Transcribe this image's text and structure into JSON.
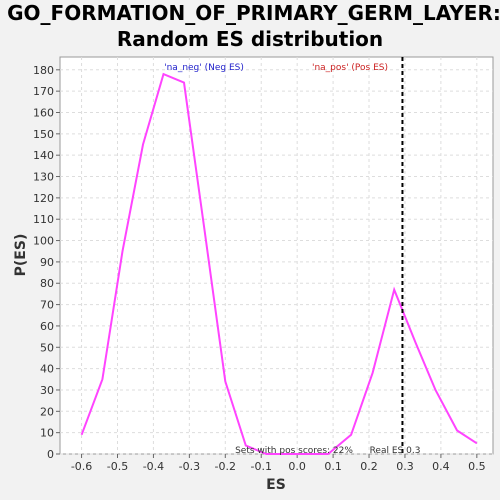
{
  "chart_data": {
    "type": "line",
    "title": [
      "GO_FORMATION_OF_PRIMARY_GERM_LAYER:",
      "Random ES distribution"
    ],
    "xlabel": "ES",
    "ylabel": "P(ES)",
    "xlim": [
      -0.66,
      0.545
    ],
    "ylim": [
      0,
      186
    ],
    "x_ticks": [
      -0.6,
      -0.5,
      -0.4,
      -0.3,
      -0.2,
      -0.1,
      0.0,
      0.1,
      0.2,
      0.3,
      0.4,
      0.5
    ],
    "x_tick_labels": [
      "-0.6",
      "-0.5",
      "-0.4",
      "-0.3",
      "-0.2",
      "-0.1",
      "0.0",
      "0.1",
      "0.2",
      "0.3",
      "0.4",
      "0.5"
    ],
    "y_ticks": [
      0,
      10,
      20,
      30,
      40,
      50,
      60,
      70,
      80,
      90,
      100,
      110,
      120,
      130,
      140,
      150,
      160,
      170,
      180
    ],
    "y_tick_labels": [
      "0",
      "10",
      "20",
      "30",
      "40",
      "50",
      "60",
      "70",
      "80",
      "90",
      "100",
      "110",
      "120",
      "130",
      "140",
      "150",
      "160",
      "170",
      "180"
    ],
    "grid": true,
    "series": [
      {
        "color": "#ff44ff",
        "x": [
          -0.6,
          -0.542,
          -0.486,
          -0.429,
          -0.372,
          -0.315,
          -0.258,
          -0.2,
          -0.143,
          -0.086,
          -0.03,
          0.03,
          0.086,
          0.15,
          0.21,
          0.27,
          0.33,
          0.385,
          0.445,
          0.5
        ],
        "y": [
          9,
          35,
          95,
          145,
          178,
          174,
          105,
          34,
          4,
          0,
          0,
          0,
          0,
          9,
          38,
          77,
          52,
          30,
          11,
          5
        ]
      }
    ],
    "real_es": {
      "value": 0.293,
      "color": "#000000"
    },
    "annotations": {
      "neg_label": "'na_neg' (Neg ES)",
      "neg_color": "#2222cc",
      "pos_label": "'na_pos' (Pos ES)",
      "pos_color": "#cc2222",
      "sets_label": "Sets with pos scores: 22%",
      "real_label": "Real ES 0.3"
    }
  }
}
